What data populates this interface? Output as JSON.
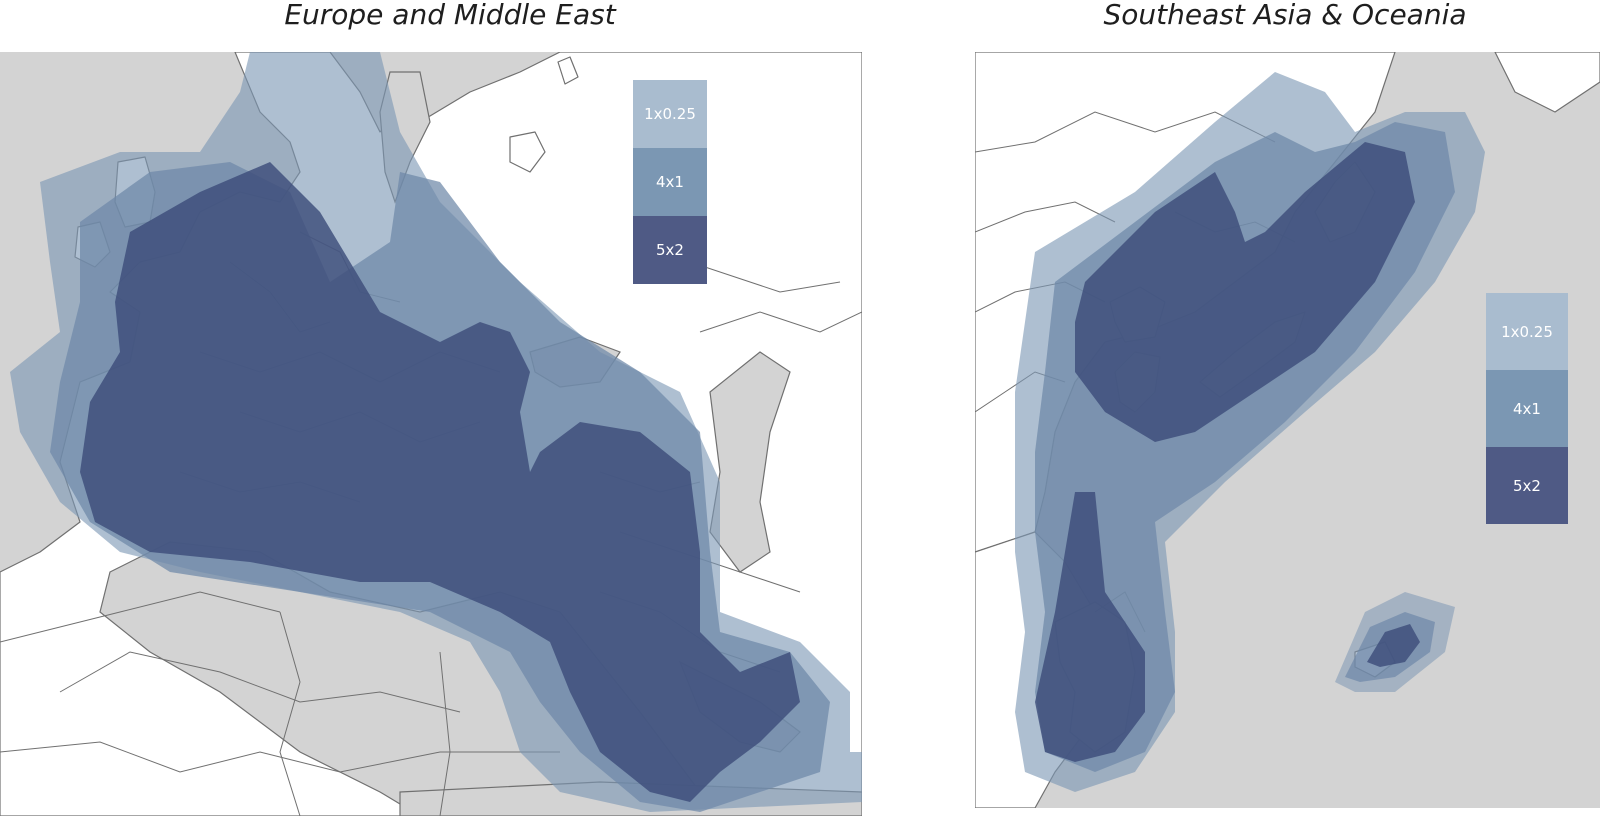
{
  "maps": [
    {
      "title": "Europe and Middle East",
      "legend": [
        {
          "label": "1x0.25",
          "color": "#a9bccf"
        },
        {
          "label": "4x1",
          "color": "#7b97b3"
        },
        {
          "label": "5x2",
          "color": "#4f5a85"
        }
      ]
    },
    {
      "title": "Southeast Asia & Oceania",
      "legend": [
        {
          "label": "1x0.25",
          "color": "#a9bccf"
        },
        {
          "label": "4x1",
          "color": "#7b97b3"
        },
        {
          "label": "5x2",
          "color": "#4f5a85"
        }
      ]
    }
  ],
  "colors": {
    "land": "#ffffff",
    "sea": "#d3d3d3",
    "borders": "#707070",
    "coverage_1x025": "#7d98b4",
    "coverage_4x1": "#6d88a8",
    "coverage_5x2": "#3d4d7a"
  }
}
